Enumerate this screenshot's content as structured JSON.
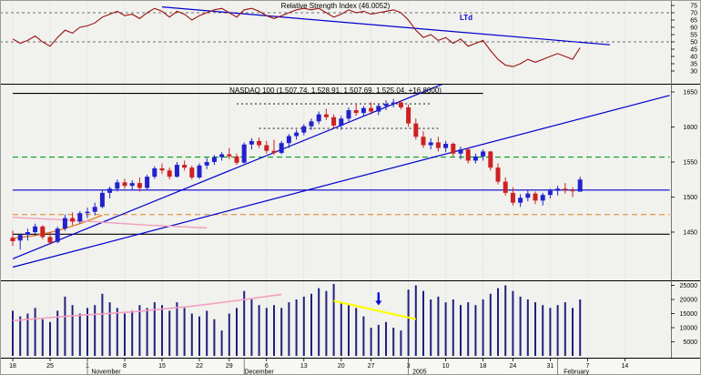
{
  "colors": {
    "background": "#f1f1ee",
    "axis_background": "#f7f7f4",
    "grid": "#c9c9c9",
    "up": "#2222cc",
    "down": "#cc2222",
    "rsi": "#991111",
    "trendline": "#0000cc",
    "volume": "#202080"
  },
  "chart_data": [
    {
      "type": "line",
      "panel": "indicator",
      "title": "Relative Strength Index (46.0052)",
      "indicator_value": 46.0052,
      "ylim": [
        21,
        79
      ],
      "yticks": [
        75,
        70,
        65,
        60,
        55,
        50,
        45,
        40,
        35,
        30
      ],
      "guides": [
        70,
        50
      ],
      "trendlines": [
        {
          "name": "LTd",
          "points": [
            [
              20,
              74
            ],
            [
              80,
              48
            ]
          ]
        }
      ],
      "values": [
        52,
        49,
        51,
        54,
        50,
        47,
        53,
        58,
        56,
        60,
        61,
        63,
        67,
        69,
        71,
        68,
        69,
        66,
        70,
        73,
        71,
        67,
        71,
        69,
        65,
        68,
        70,
        72,
        73,
        70,
        67,
        72,
        73,
        71,
        68,
        66,
        68,
        70,
        72,
        73,
        72,
        73,
        70,
        67,
        69,
        72,
        70,
        71,
        69,
        70,
        71,
        72,
        70,
        65,
        58,
        53,
        55,
        51,
        53,
        49,
        52,
        47,
        49,
        51,
        44,
        38,
        34,
        33,
        35,
        38,
        36,
        38,
        40,
        42,
        40,
        38,
        46
      ]
    },
    {
      "type": "candlestick",
      "panel": "price",
      "title": "NASDAQ 100 (1,507.74, 1,528.91, 1,507.69, 1,525.04, +16.8000)",
      "symbol": "NASDAQ 100",
      "quote": {
        "open": 1507.74,
        "high": 1528.91,
        "low": 1507.69,
        "close": 1525.04,
        "change": "+16.8000"
      },
      "ylim": [
        1381,
        1662
      ],
      "yticks": [
        1650,
        1600,
        1550,
        1500,
        1450
      ],
      "hlines": [
        {
          "value": 1648,
          "color": "#000000",
          "style": "solid",
          "from": 0,
          "to": 63
        },
        {
          "value": 1633,
          "color": "#303030",
          "style": "dotted",
          "from": 30,
          "to": 56
        },
        {
          "value": 1598,
          "color": "#303030",
          "style": "dotted",
          "from": 33,
          "to": 57
        },
        {
          "value": 1557,
          "color": "#00a020",
          "style": "dashed",
          "from": 0,
          "to": 88
        },
        {
          "value": 1510,
          "color": "#0000cc",
          "style": "solid",
          "from": 0,
          "to": 88
        },
        {
          "value": 1475,
          "color": "#e08020",
          "style": "dashed",
          "from": 0,
          "to": 88
        },
        {
          "value": 1447,
          "color": "#000000",
          "style": "solid",
          "from": 0,
          "to": 88
        }
      ],
      "trendlines": [
        {
          "name": "long-uptrend",
          "points": [
            [
              0,
              1400
            ],
            [
              88,
              1645
            ]
          ]
        },
        {
          "name": "steep-uptrend",
          "points": [
            [
              0,
              1412
            ],
            [
              58,
              1663
            ]
          ]
        }
      ],
      "moving_averages": [
        {
          "name": "ma-fast",
          "color": "#e08020",
          "points": [
            [
              0,
              1441
            ],
            [
              3,
              1445
            ],
            [
              6,
              1452
            ],
            [
              9,
              1462
            ],
            [
              12,
              1474
            ]
          ]
        },
        {
          "name": "ma-slow",
          "color": "#f2a0c0",
          "points": [
            [
              0,
              1471
            ],
            [
              6,
              1468
            ],
            [
              12,
              1464
            ],
            [
              18,
              1460
            ],
            [
              26,
              1456
            ]
          ]
        }
      ],
      "ohlc": [
        [
          1442,
          1452,
          1430,
          1437
        ],
        [
          1438,
          1448,
          1425,
          1446
        ],
        [
          1446,
          1455,
          1438,
          1450
        ],
        [
          1450,
          1462,
          1445,
          1458
        ],
        [
          1458,
          1460,
          1440,
          1443
        ],
        [
          1443,
          1450,
          1432,
          1435
        ],
        [
          1436,
          1458,
          1434,
          1455
        ],
        [
          1455,
          1475,
          1452,
          1470
        ],
        [
          1470,
          1478,
          1460,
          1465
        ],
        [
          1465,
          1480,
          1462,
          1477
        ],
        [
          1477,
          1485,
          1470,
          1479
        ],
        [
          1479,
          1492,
          1474,
          1486
        ],
        [
          1486,
          1510,
          1484,
          1506
        ],
        [
          1506,
          1515,
          1498,
          1512
        ],
        [
          1512,
          1525,
          1508,
          1521
        ],
        [
          1521,
          1526,
          1512,
          1516
        ],
        [
          1516,
          1524,
          1510,
          1520
        ],
        [
          1520,
          1528,
          1508,
          1513
        ],
        [
          1513,
          1532,
          1511,
          1529
        ],
        [
          1529,
          1544,
          1526,
          1541
        ],
        [
          1541,
          1548,
          1533,
          1538
        ],
        [
          1538,
          1542,
          1525,
          1529
        ],
        [
          1529,
          1550,
          1528,
          1546
        ],
        [
          1546,
          1552,
          1538,
          1542
        ],
        [
          1542,
          1545,
          1525,
          1528
        ],
        [
          1528,
          1548,
          1526,
          1545
        ],
        [
          1545,
          1556,
          1540,
          1550
        ],
        [
          1550,
          1560,
          1546,
          1557
        ],
        [
          1557,
          1564,
          1552,
          1561
        ],
        [
          1561,
          1570,
          1554,
          1558
        ],
        [
          1558,
          1562,
          1546,
          1549
        ],
        [
          1549,
          1578,
          1548,
          1575
        ],
        [
          1575,
          1584,
          1568,
          1580
        ],
        [
          1580,
          1585,
          1570,
          1574
        ],
        [
          1574,
          1580,
          1562,
          1566
        ],
        [
          1566,
          1582,
          1560,
          1563
        ],
        [
          1563,
          1580,
          1561,
          1577
        ],
        [
          1577,
          1590,
          1570,
          1587
        ],
        [
          1587,
          1596,
          1582,
          1592
        ],
        [
          1592,
          1604,
          1588,
          1601
        ],
        [
          1601,
          1612,
          1596,
          1608
        ],
        [
          1608,
          1622,
          1604,
          1618
        ],
        [
          1618,
          1626,
          1610,
          1614
        ],
        [
          1614,
          1618,
          1598,
          1602
        ],
        [
          1602,
          1616,
          1596,
          1612
        ],
        [
          1612,
          1628,
          1608,
          1624
        ],
        [
          1624,
          1632,
          1616,
          1620
        ],
        [
          1620,
          1630,
          1615,
          1627
        ],
        [
          1627,
          1635,
          1618,
          1622
        ],
        [
          1622,
          1633,
          1617,
          1630
        ],
        [
          1630,
          1638,
          1624,
          1633
        ],
        [
          1633,
          1640,
          1628,
          1635
        ],
        [
          1635,
          1638,
          1625,
          1628
        ],
        [
          1628,
          1632,
          1600,
          1605
        ],
        [
          1605,
          1612,
          1582,
          1586
        ],
        [
          1586,
          1594,
          1570,
          1574
        ],
        [
          1574,
          1584,
          1568,
          1578
        ],
        [
          1578,
          1586,
          1565,
          1570
        ],
        [
          1570,
          1580,
          1564,
          1576
        ],
        [
          1576,
          1578,
          1558,
          1562
        ],
        [
          1562,
          1572,
          1554,
          1568
        ],
        [
          1568,
          1570,
          1548,
          1552
        ],
        [
          1552,
          1562,
          1548,
          1558
        ],
        [
          1558,
          1568,
          1552,
          1565
        ],
        [
          1565,
          1566,
          1538,
          1542
        ],
        [
          1542,
          1548,
          1518,
          1522
        ],
        [
          1522,
          1528,
          1502,
          1506
        ],
        [
          1506,
          1514,
          1488,
          1492
        ],
        [
          1492,
          1504,
          1486,
          1499
        ],
        [
          1499,
          1510,
          1494,
          1505
        ],
        [
          1505,
          1508,
          1490,
          1495
        ],
        [
          1495,
          1506,
          1488,
          1503
        ],
        [
          1503,
          1512,
          1498,
          1509
        ],
        [
          1509,
          1516,
          1502,
          1512
        ],
        [
          1512,
          1520,
          1505,
          1510
        ],
        [
          1510,
          1514,
          1500,
          1508.24
        ],
        [
          1507.74,
          1528.91,
          1507.69,
          1525.04
        ]
      ]
    },
    {
      "type": "bar",
      "panel": "volume",
      "name": "Volume",
      "ylim": [
        0,
        27000
      ],
      "yticks": [
        25000,
        20000,
        15000,
        10000,
        5000
      ],
      "values": [
        16000,
        14000,
        15000,
        17000,
        13000,
        12000,
        16000,
        21000,
        18000,
        15000,
        17000,
        18000,
        22000,
        19000,
        17000,
        15000,
        16000,
        18000,
        17000,
        19000,
        18000,
        16000,
        19000,
        17000,
        15000,
        14000,
        16000,
        13000,
        9000,
        15000,
        17000,
        23000,
        20000,
        18000,
        17000,
        18000,
        17000,
        19000,
        20000,
        21000,
        22000,
        24000,
        23000,
        25500,
        19000,
        18000,
        17000,
        14000,
        10000,
        11000,
        12000,
        10000,
        9000,
        23500,
        25000,
        23000,
        20000,
        21000,
        19000,
        20000,
        18000,
        19000,
        18000,
        20000,
        22000,
        24000,
        25000,
        23000,
        21000,
        20000,
        19000,
        18000,
        17000,
        18000,
        19000,
        17000,
        20000
      ],
      "ma": {
        "name": "volume-ma",
        "color": "#f2a0c0",
        "points": [
          [
            0,
            12500
          ],
          [
            8,
            14200
          ],
          [
            16,
            15600
          ],
          [
            24,
            17600
          ],
          [
            30,
            19600
          ],
          [
            36,
            21800
          ]
        ]
      },
      "annotations": {
        "yellow_line": {
          "color": "#ffff00",
          "points": [
            [
              43,
              19500
            ],
            [
              54,
              13000
            ]
          ]
        },
        "down_arrow": {
          "color": "#0000dd",
          "day": 49,
          "from": 22500,
          "to": 19500
        }
      }
    }
  ],
  "xaxis": {
    "ticks": [
      {
        "label": "18",
        "day": 0
      },
      {
        "label": "25",
        "day": 5
      },
      {
        "label": "1",
        "day": 10
      },
      {
        "label": "8",
        "day": 15
      },
      {
        "label": "15",
        "day": 20
      },
      {
        "label": "22",
        "day": 25
      },
      {
        "label": "29",
        "day": 29
      },
      {
        "label": "6",
        "day": 34
      },
      {
        "label": "13",
        "day": 39
      },
      {
        "label": "20",
        "day": 44
      },
      {
        "label": "27",
        "day": 48
      },
      {
        "label": "3",
        "day": 53
      },
      {
        "label": "10",
        "day": 58
      },
      {
        "label": "18",
        "day": 63
      },
      {
        "label": "24",
        "day": 67
      },
      {
        "label": "31",
        "day": 72
      },
      {
        "label": "7",
        "day": 77
      },
      {
        "label": "14",
        "day": 82
      }
    ],
    "months": [
      {
        "label": "November",
        "day": 12.5
      },
      {
        "label": "December",
        "day": 33
      },
      {
        "label": "2005",
        "day": 54.5
      },
      {
        "label": "February",
        "day": 75.5
      }
    ],
    "month_dividers": [
      10,
      31,
      53,
      73
    ]
  }
}
